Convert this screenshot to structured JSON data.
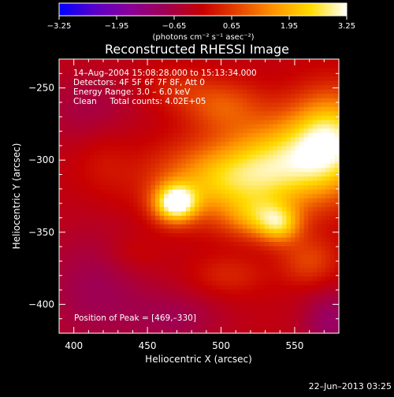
{
  "chart_data": {
    "type": "heatmap",
    "title": "Reconstructed RHESSI Image",
    "xlabel": "Heliocentric X (arcsec)",
    "ylabel": "Heliocentric Y (arcsec)",
    "xlim": [
      390,
      580
    ],
    "ylim": [
      -420,
      -230
    ],
    "x_ticks": [
      400,
      450,
      500,
      550
    ],
    "y_ticks": [
      -250,
      -300,
      -350,
      -400
    ],
    "colorbar": {
      "label": "(photons cm⁻² s⁻¹ asec⁻²)",
      "range": [
        -3.25,
        3.25
      ],
      "ticks": [
        "−3.25",
        "−1.95",
        "−0.65",
        "0.65",
        "1.95",
        "3.25"
      ],
      "colormap": [
        "#0000ff",
        "#5a00c8",
        "#8c0096",
        "#a00050",
        "#c80000",
        "#e64600",
        "#ff9600",
        "#ffdc00",
        "#ffffff"
      ]
    },
    "annotations": {
      "time": "14–Aug–2004 15:08:28.000 to 15:13:34.000",
      "detectors": "Detectors: 4F 5F 6F 7F 8F, Att 0",
      "energy": "Energy Range: 3.0 – 6.0 keV",
      "clean": "Clean     Total counts: 4.02E+05",
      "peak": "Position of Peak = [469,–330]"
    },
    "peak": [
      469,
      -330
    ],
    "sources": [
      {
        "x": 469,
        "y": -330,
        "amp": 3.25,
        "sx": 10,
        "sy": 9
      },
      {
        "x": 500,
        "y": -315,
        "amp": 2.0,
        "sx": 32,
        "sy": 18
      },
      {
        "x": 545,
        "y": -300,
        "amp": 2.3,
        "sx": 30,
        "sy": 22
      },
      {
        "x": 575,
        "y": -285,
        "amp": 2.4,
        "sx": 18,
        "sy": 22
      },
      {
        "x": 540,
        "y": -345,
        "amp": 1.7,
        "sx": 10,
        "sy": 9
      },
      {
        "x": 525,
        "y": -340,
        "amp": 1.4,
        "sx": 15,
        "sy": 10
      },
      {
        "x": 500,
        "y": -262,
        "amp": 1.0,
        "sx": 18,
        "sy": 12
      },
      {
        "x": 470,
        "y": -250,
        "amp": 0.5,
        "sx": 16,
        "sy": 10
      },
      {
        "x": 440,
        "y": -365,
        "amp": 0.35,
        "sx": 14,
        "sy": 10
      },
      {
        "x": 505,
        "y": -380,
        "amp": 0.55,
        "sx": 18,
        "sy": 10
      },
      {
        "x": 560,
        "y": -370,
        "amp": 0.9,
        "sx": 14,
        "sy": 12
      },
      {
        "x": 420,
        "y": -300,
        "amp": 0.35,
        "sx": 14,
        "sy": 18
      },
      {
        "x": 410,
        "y": -265,
        "amp": -0.55,
        "sx": 22,
        "sy": 18
      },
      {
        "x": 415,
        "y": -390,
        "amp": -0.7,
        "sx": 26,
        "sy": 30
      },
      {
        "x": 470,
        "y": -410,
        "amp": -0.6,
        "sx": 22,
        "sy": 14
      },
      {
        "x": 575,
        "y": -412,
        "amp": -0.9,
        "sx": 14,
        "sy": 16
      }
    ],
    "background": -0.15
  },
  "footer": {
    "date": "22–Jun–2013 03:25"
  }
}
